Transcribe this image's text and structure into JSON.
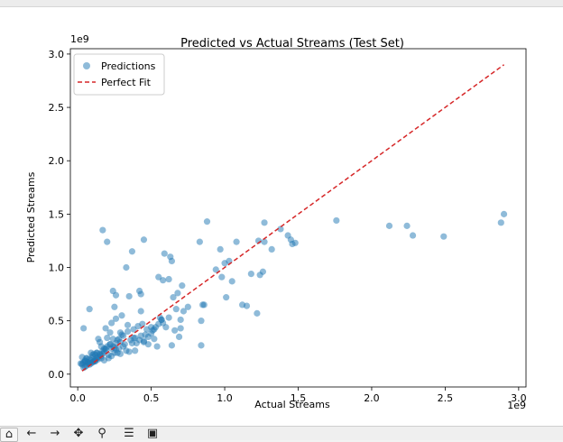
{
  "chart_data": {
    "type": "scatter",
    "title": "Predicted vs Actual Streams (Test Set)",
    "xlabel": "Actual Streams",
    "ylabel": "Predicted Streams",
    "x_offset_label": "1e9",
    "y_offset_label": "1e9",
    "xlim": [
      -0.05,
      3.05
    ],
    "ylim": [
      -0.12,
      3.05
    ],
    "xticks": [
      0.0,
      0.5,
      1.0,
      1.5,
      2.0,
      2.5,
      3.0
    ],
    "yticks": [
      0.0,
      0.5,
      1.0,
      1.5,
      2.0,
      2.5,
      3.0
    ],
    "xtick_labels": [
      "0.0",
      "0.5",
      "1.0",
      "1.5",
      "2.0",
      "2.5",
      "3.0"
    ],
    "ytick_labels": [
      "0.0",
      "0.5",
      "1.0",
      "1.5",
      "2.0",
      "2.5",
      "3.0"
    ],
    "grid": false,
    "legend_position": "top-left",
    "series": [
      {
        "name": "Predictions",
        "kind": "scatter",
        "color": "#1f77b4",
        "alpha": 0.5,
        "x": [
          2.9,
          2.88,
          2.49,
          2.28,
          2.24,
          2.12,
          1.76,
          1.48,
          1.46,
          1.45,
          1.43,
          1.38,
          1.32,
          1.27,
          1.27,
          1.26,
          1.24,
          1.23,
          1.22,
          1.18,
          1.15,
          1.12,
          1.08,
          1.05,
          1.03,
          1.0,
          1.01,
          0.98,
          0.97,
          0.94,
          0.88,
          0.85,
          0.86,
          0.84,
          0.84,
          0.83,
          0.75,
          0.72,
          0.68,
          0.67,
          0.65,
          0.64,
          0.63,
          0.62,
          0.59,
          0.58,
          0.55,
          0.52,
          0.51,
          0.5,
          0.45,
          0.44,
          0.43,
          0.42,
          0.39,
          0.37,
          0.35,
          0.33,
          0.3,
          0.26,
          0.26,
          0.25,
          0.24,
          0.23,
          0.2,
          0.17,
          0.14,
          0.12,
          0.08,
          0.05,
          0.04,
          0.71,
          0.7,
          0.69,
          0.66,
          0.64,
          0.6,
          0.58,
          0.57,
          0.56,
          0.55,
          0.54,
          0.52,
          0.48,
          0.46,
          0.45,
          0.42,
          0.4,
          0.38,
          0.36,
          0.33,
          0.31,
          0.29,
          0.28,
          0.26,
          0.25,
          0.23,
          0.22,
          0.2,
          0.19,
          0.18,
          0.17,
          0.16,
          0.15,
          0.14,
          0.13,
          0.12,
          0.11,
          0.1,
          0.09,
          0.08,
          0.07,
          0.06,
          0.05,
          0.04,
          0.03,
          0.7,
          0.62,
          0.57,
          0.53,
          0.5,
          0.48,
          0.47,
          0.45,
          0.43,
          0.41,
          0.39,
          0.37,
          0.35,
          0.34,
          0.32,
          0.3,
          0.29,
          0.28,
          0.27,
          0.26,
          0.25,
          0.24,
          0.23,
          0.22,
          0.21,
          0.2,
          0.19,
          0.18,
          0.17,
          0.16,
          0.15,
          0.14,
          0.13,
          0.12,
          0.11,
          0.1,
          0.09,
          0.08,
          0.07,
          0.06,
          0.05,
          0.43,
          0.38,
          0.34,
          0.31,
          0.29,
          0.27,
          0.24,
          0.22,
          0.21,
          0.19,
          0.18,
          0.16,
          0.15,
          0.13,
          0.12,
          0.11,
          0.1,
          0.09,
          0.08,
          0.07,
          0.06,
          0.05,
          0.04,
          0.03,
          0.03,
          0.02
        ],
        "y": [
          1.5,
          1.42,
          1.29,
          1.3,
          1.39,
          1.39,
          1.44,
          1.23,
          1.22,
          1.26,
          1.3,
          1.36,
          1.17,
          1.42,
          1.24,
          0.96,
          0.93,
          1.25,
          0.57,
          0.94,
          0.64,
          0.65,
          1.24,
          0.87,
          1.06,
          1.04,
          0.72,
          0.91,
          1.17,
          0.98,
          1.43,
          0.65,
          0.65,
          0.27,
          0.5,
          1.24,
          0.63,
          0.59,
          0.76,
          0.61,
          0.72,
          1.06,
          1.1,
          0.89,
          1.13,
          0.88,
          0.91,
          0.42,
          0.41,
          0.38,
          1.26,
          0.47,
          0.75,
          0.78,
          0.22,
          1.15,
          0.73,
          1.0,
          0.55,
          0.52,
          0.74,
          0.63,
          0.78,
          0.48,
          1.24,
          1.35,
          0.33,
          0.18,
          0.61,
          0.12,
          0.43,
          0.83,
          0.43,
          0.35,
          0.41,
          0.27,
          0.44,
          0.48,
          0.51,
          0.53,
          0.47,
          0.26,
          0.33,
          0.35,
          0.37,
          0.3,
          0.32,
          0.29,
          0.34,
          0.32,
          0.22,
          0.26,
          0.3,
          0.33,
          0.29,
          0.25,
          0.24,
          0.28,
          0.26,
          0.23,
          0.21,
          0.19,
          0.17,
          0.18,
          0.14,
          0.15,
          0.13,
          0.12,
          0.11,
          0.1,
          0.09,
          0.11,
          0.08,
          0.07,
          0.06,
          0.1,
          0.51,
          0.53,
          0.51,
          0.44,
          0.44,
          0.28,
          0.42,
          0.31,
          0.36,
          0.45,
          0.34,
          0.29,
          0.21,
          0.4,
          0.28,
          0.37,
          0.19,
          0.24,
          0.32,
          0.23,
          0.2,
          0.33,
          0.17,
          0.28,
          0.15,
          0.34,
          0.24,
          0.13,
          0.22,
          0.26,
          0.19,
          0.16,
          0.2,
          0.14,
          0.12,
          0.18,
          0.13,
          0.11,
          0.1,
          0.15,
          0.12,
          0.59,
          0.42,
          0.46,
          0.36,
          0.39,
          0.2,
          0.26,
          0.39,
          0.18,
          0.43,
          0.24,
          0.15,
          0.3,
          0.2,
          0.12,
          0.19,
          0.16,
          0.2,
          0.14,
          0.11,
          0.15,
          0.13,
          0.11,
          0.16,
          0.09,
          0.1
        ]
      },
      {
        "name": "Perfect Fit",
        "kind": "line",
        "color": "#d62728",
        "dashed": true,
        "x": [
          0.03,
          2.9
        ],
        "y": [
          0.03,
          2.9
        ]
      }
    ]
  },
  "toolbar": {
    "buttons": [
      {
        "name": "home-button",
        "icon": "home-icon",
        "glyph": "⌂"
      },
      {
        "name": "back-button",
        "icon": "arrow-left-icon",
        "glyph": "←"
      },
      {
        "name": "forward-button",
        "icon": "arrow-right-icon",
        "glyph": "→"
      },
      {
        "name": "pan-button",
        "icon": "move-icon",
        "glyph": "✥"
      },
      {
        "name": "zoom-button",
        "icon": "magnifier-icon",
        "glyph": "⚲"
      },
      {
        "name": "configure-subplots-button",
        "icon": "sliders-icon",
        "glyph": "☰"
      },
      {
        "name": "save-button",
        "icon": "floppy-disk-icon",
        "glyph": "▣"
      }
    ]
  }
}
